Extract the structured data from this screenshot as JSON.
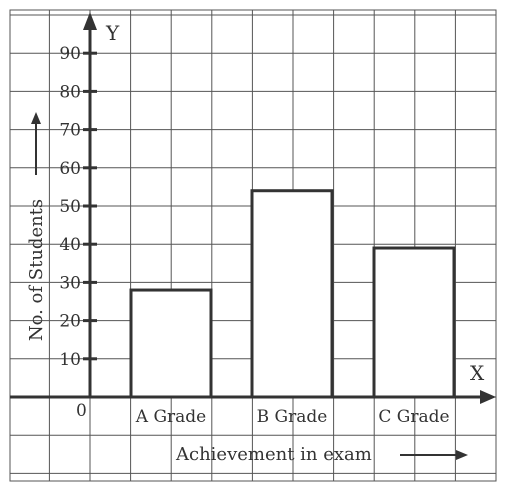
{
  "chart_data": {
    "type": "bar",
    "categories": [
      "A Grade",
      "B Grade",
      "C Grade"
    ],
    "values": [
      28,
      54,
      39
    ],
    "ylim": [
      0,
      95
    ],
    "yticks": [
      10,
      20,
      30,
      40,
      50,
      60,
      70,
      80,
      90
    ],
    "origin_label": "0",
    "xlabel": "Achievement in exam",
    "ylabel": "No. of Students",
    "x_axis_letter": "X",
    "y_axis_letter": "Y",
    "grid": true,
    "legend": "none"
  }
}
